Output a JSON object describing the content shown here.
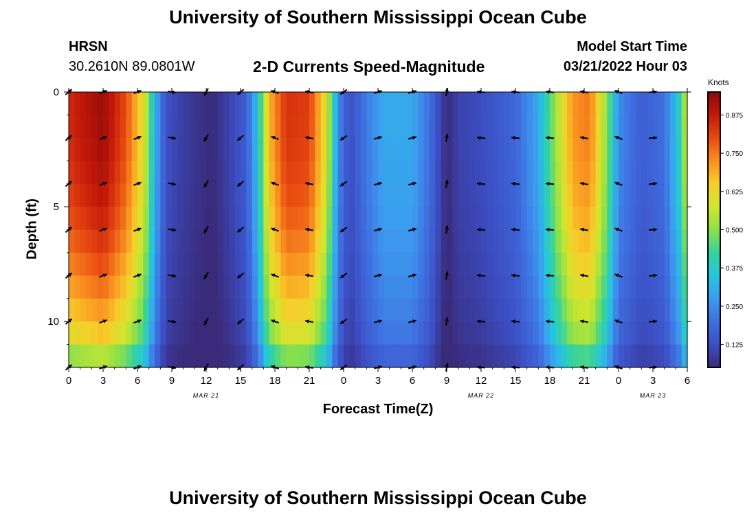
{
  "title": "University of Southern Mississippi Ocean Cube",
  "footer_title": "University of Southern Mississippi Ocean Cube",
  "station": {
    "name": "HRSN",
    "coords": "30.2610N  89.0801W"
  },
  "model": {
    "label": "Model Start Time",
    "time": "03/21/2022 Hour 03"
  },
  "colors": {
    "scale": [
      "#3a2a7a",
      "#3c4fc4",
      "#3f6fe0",
      "#3d9bef",
      "#24c6de",
      "#36d39c",
      "#8be04a",
      "#d0e62e",
      "#f7ce2a",
      "#f99020",
      "#e84b12",
      "#c4190a",
      "#8b0a08"
    ],
    "arrow": "#000000"
  },
  "chart_data": {
    "type": "heatmap",
    "title": "2-D Currents Speed-Magnitude",
    "xlabel": "Forecast Time(Z)",
    "ylabel": "Depth (ft)",
    "x_range": [
      0,
      54
    ],
    "ylim": [
      0,
      12
    ],
    "x_ticks": [
      {
        "h": 0,
        "label": "0"
      },
      {
        "h": 3,
        "label": "3"
      },
      {
        "h": 6,
        "label": "6"
      },
      {
        "h": 9,
        "label": "9"
      },
      {
        "h": 12,
        "label": "12"
      },
      {
        "h": 15,
        "label": "15"
      },
      {
        "h": 18,
        "label": "18"
      },
      {
        "h": 21,
        "label": "21"
      },
      {
        "h": 24,
        "label": "0"
      },
      {
        "h": 27,
        "label": "3"
      },
      {
        "h": 30,
        "label": "6"
      },
      {
        "h": 33,
        "label": "9"
      },
      {
        "h": 36,
        "label": "12"
      },
      {
        "h": 39,
        "label": "15"
      },
      {
        "h": 42,
        "label": "18"
      },
      {
        "h": 45,
        "label": "21"
      },
      {
        "h": 48,
        "label": "0"
      },
      {
        "h": 51,
        "label": "3"
      },
      {
        "h": 54,
        "label": "6"
      }
    ],
    "date_labels": [
      {
        "h": 12,
        "label": "MAR 21"
      },
      {
        "h": 36,
        "label": "MAR 22"
      },
      {
        "h": 51,
        "label": "MAR 23"
      }
    ],
    "y_ticks": [
      {
        "d": 0,
        "label": "0"
      },
      {
        "d": 5,
        "label": "5"
      },
      {
        "d": 10,
        "label": "10"
      }
    ],
    "colorbar": {
      "unit": "Knots",
      "range": [
        0.05,
        0.95
      ],
      "ticks": [
        {
          "v": 0.125,
          "label": "0.125"
        },
        {
          "v": 0.25,
          "label": "0.250"
        },
        {
          "v": 0.375,
          "label": "0.375"
        },
        {
          "v": 0.5,
          "label": "0.500"
        },
        {
          "v": 0.625,
          "label": "0.625"
        },
        {
          "v": 0.75,
          "label": "0.750"
        },
        {
          "v": 0.875,
          "label": "0.875"
        }
      ]
    },
    "speed_profile_surface": [
      {
        "h": 0,
        "v": 0.85
      },
      {
        "h": 1,
        "v": 0.88
      },
      {
        "h": 3,
        "v": 0.93
      },
      {
        "h": 5,
        "v": 0.8
      },
      {
        "h": 6.6,
        "v": 0.6
      },
      {
        "h": 7.5,
        "v": 0.32
      },
      {
        "h": 8.5,
        "v": 0.13
      },
      {
        "h": 10,
        "v": 0.09
      },
      {
        "h": 12.5,
        "v": 0.05
      },
      {
        "h": 14,
        "v": 0.1
      },
      {
        "h": 15.5,
        "v": 0.16
      },
      {
        "h": 16.5,
        "v": 0.35
      },
      {
        "h": 17.5,
        "v": 0.68
      },
      {
        "h": 19,
        "v": 0.84
      },
      {
        "h": 21,
        "v": 0.82
      },
      {
        "h": 22.5,
        "v": 0.6
      },
      {
        "h": 23.5,
        "v": 0.25
      },
      {
        "h": 24.5,
        "v": 0.12
      },
      {
        "h": 26,
        "v": 0.22
      },
      {
        "h": 27.5,
        "v": 0.3
      },
      {
        "h": 30,
        "v": 0.3
      },
      {
        "h": 31.5,
        "v": 0.2
      },
      {
        "h": 33,
        "v": 0.05
      },
      {
        "h": 34,
        "v": 0.1
      },
      {
        "h": 36,
        "v": 0.12
      },
      {
        "h": 39,
        "v": 0.18
      },
      {
        "h": 41,
        "v": 0.3
      },
      {
        "h": 42.5,
        "v": 0.52
      },
      {
        "h": 44,
        "v": 0.72
      },
      {
        "h": 45.5,
        "v": 0.75
      },
      {
        "h": 47,
        "v": 0.5
      },
      {
        "h": 48,
        "v": 0.25
      },
      {
        "h": 50,
        "v": 0.16
      },
      {
        "h": 52,
        "v": 0.2
      },
      {
        "h": 53.3,
        "v": 0.38
      },
      {
        "h": 54,
        "v": 0.6
      }
    ],
    "vector_depths": [
      0,
      2,
      4,
      6,
      8,
      10,
      12
    ],
    "vector_directions_deg": [
      {
        "h": 0,
        "dir": 40
      },
      {
        "h": 3,
        "dir": 20
      },
      {
        "h": 6,
        "dir": 20
      },
      {
        "h": 9,
        "dir": -10
      },
      {
        "h": 12,
        "dir": -120
      },
      {
        "h": 15,
        "dir": -140
      },
      {
        "h": 18,
        "dir": 160
      },
      {
        "h": 21,
        "dir": 170
      },
      {
        "h": 24,
        "dir": -145
      },
      {
        "h": 27,
        "dir": 15
      },
      {
        "h": 30,
        "dir": 15
      },
      {
        "h": 33,
        "dir": 80
      },
      {
        "h": 36,
        "dir": 175
      },
      {
        "h": 39,
        "dir": 175
      },
      {
        "h": 42,
        "dir": 175
      },
      {
        "h": 45,
        "dir": 170
      },
      {
        "h": 48,
        "dir": 160
      },
      {
        "h": 51,
        "dir": 5
      }
    ]
  }
}
